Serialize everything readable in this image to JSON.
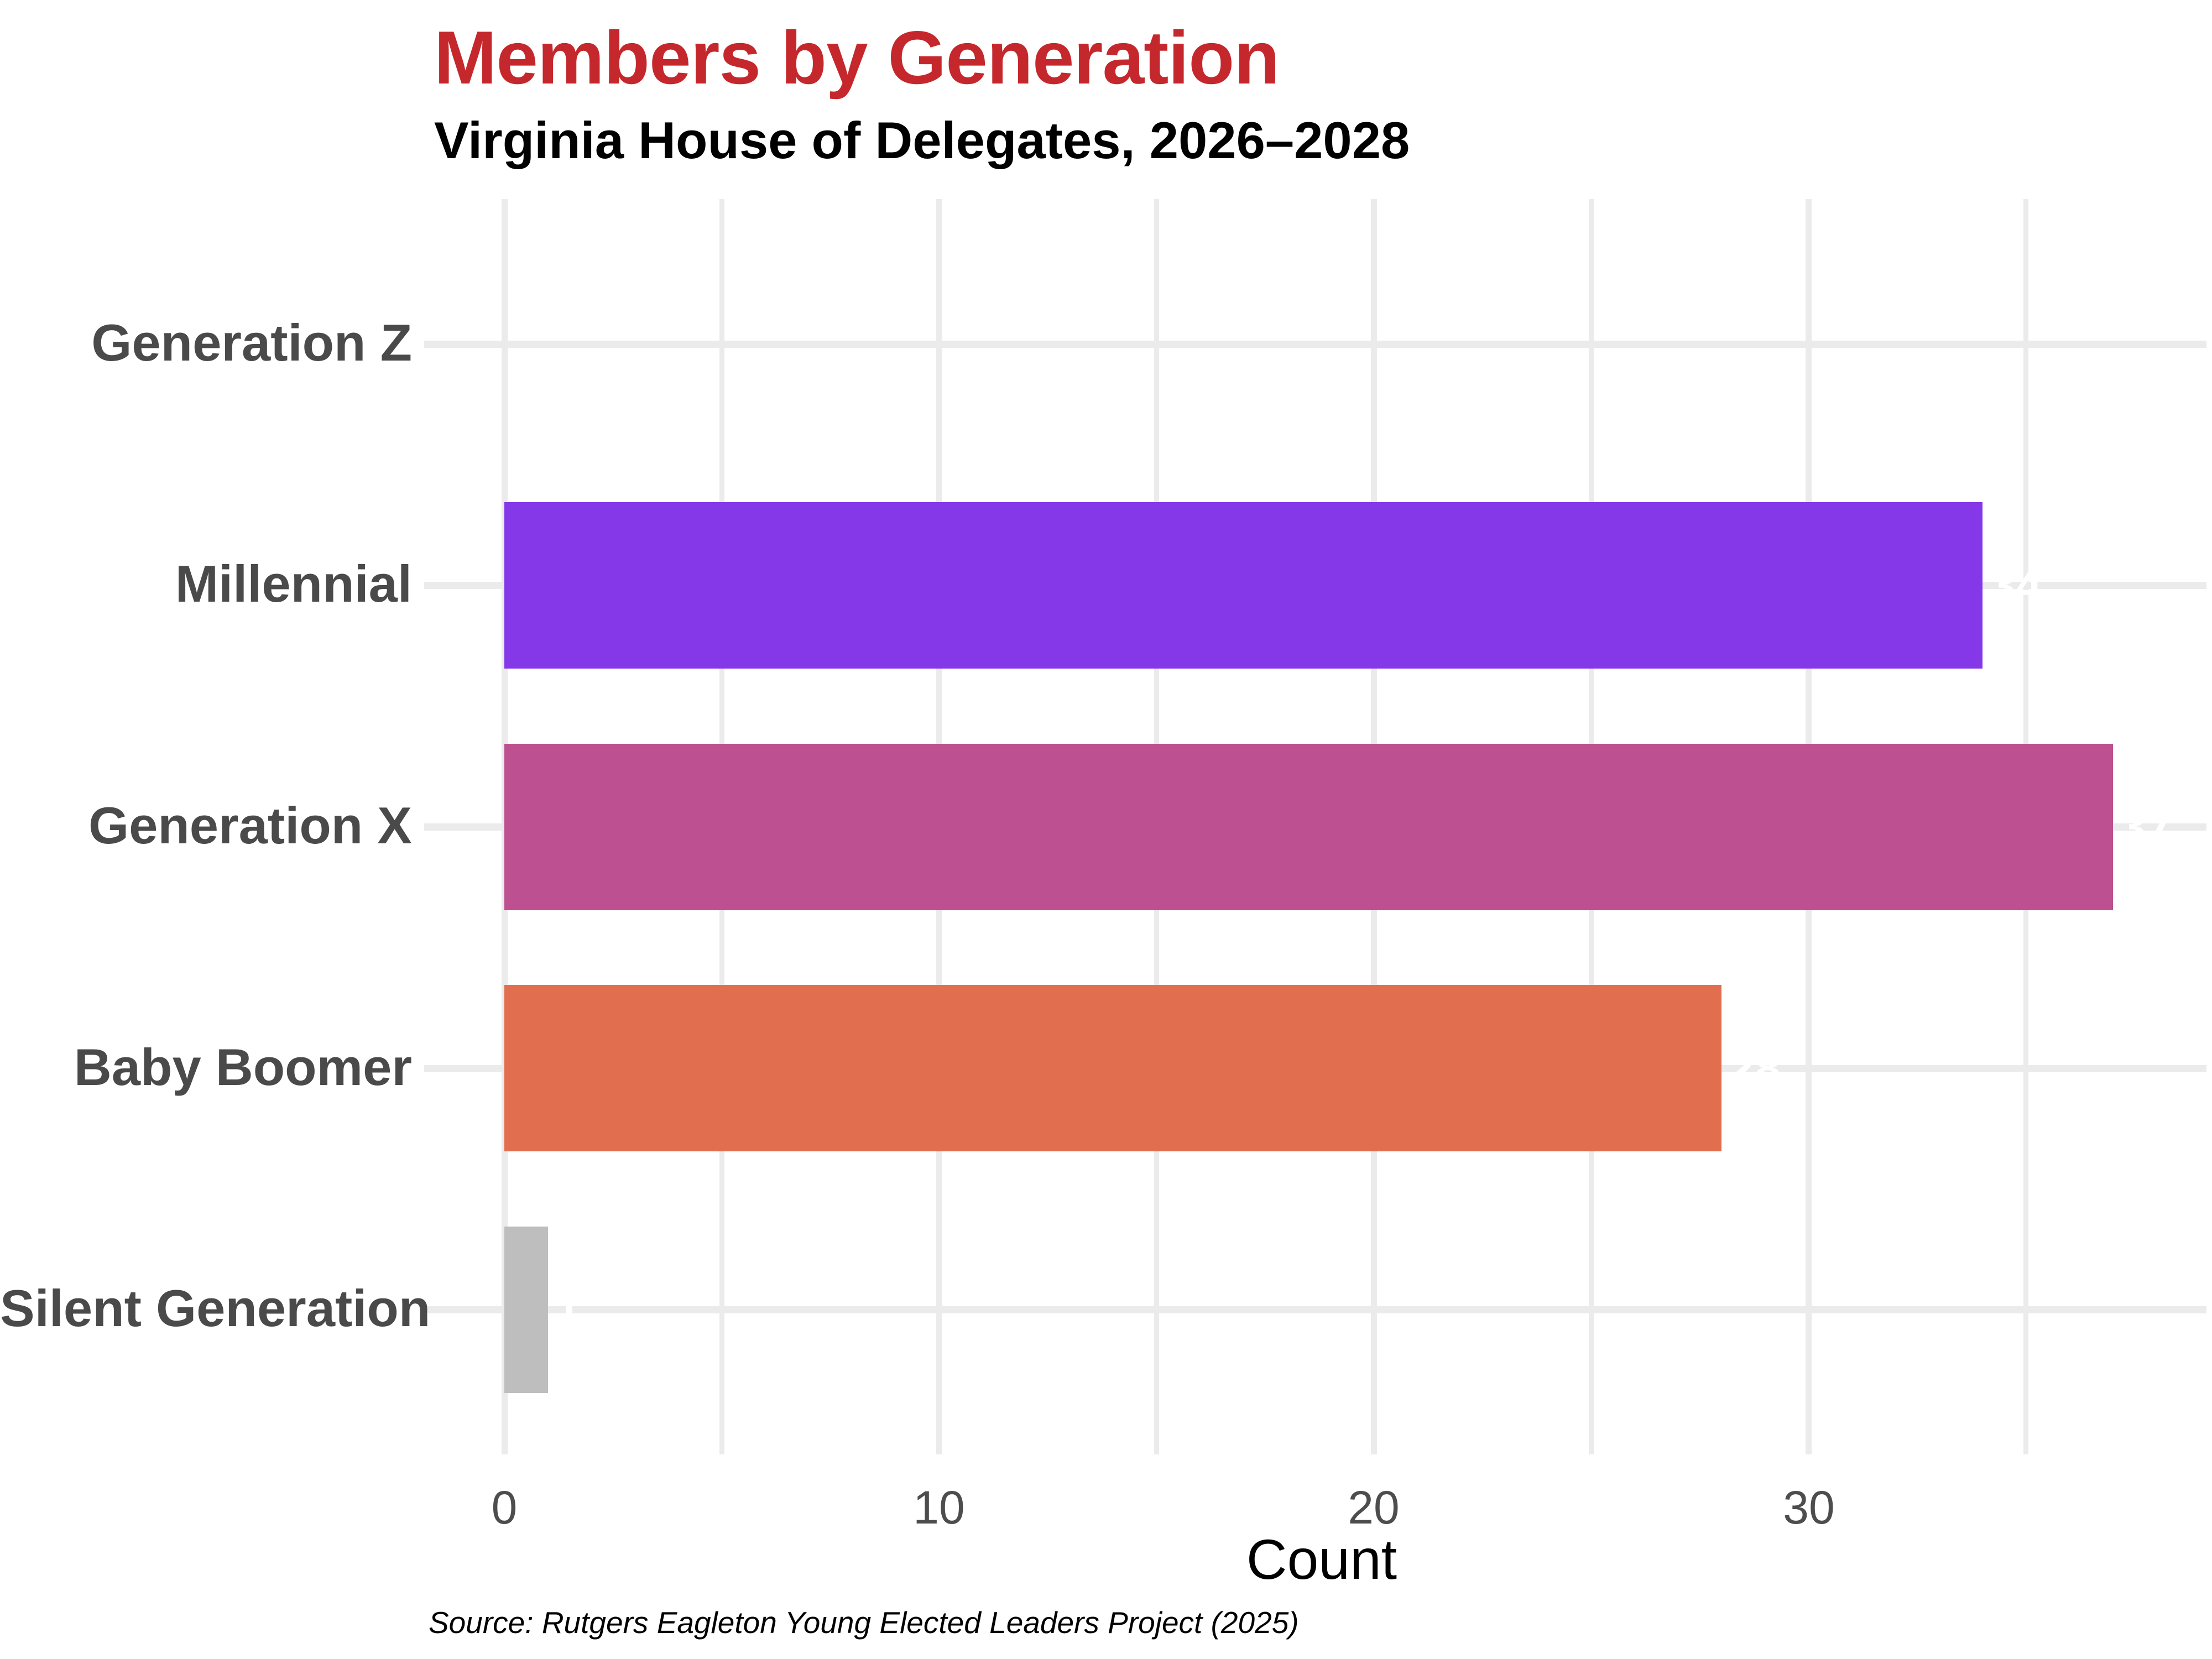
{
  "chart_data": {
    "type": "bar",
    "orientation": "horizontal",
    "title": "Members by Generation",
    "subtitle": "Virginia House of Delegates, 2026–2028",
    "xlabel": "Count",
    "ylabel": "",
    "categories": [
      "Generation Z",
      "Millennial",
      "Generation X",
      "Baby Boomer",
      "Silent Generation"
    ],
    "values": [
      0,
      34,
      37,
      28,
      1
    ],
    "bar_colors": [
      null,
      "#8438E8",
      "#BC5090",
      "#E26E50",
      "#BEBEBE"
    ],
    "value_labels": [
      "",
      "34",
      "37",
      "28",
      "1"
    ],
    "value_label_color": "#FFFFFF",
    "xlim": [
      0,
      39.15
    ],
    "x_major_ticks": [
      0,
      10,
      20,
      30
    ],
    "x_minor_ticks": [
      5,
      15,
      25,
      35
    ],
    "grid": true,
    "grid_color": "#EBEBEB",
    "legend": "none",
    "title_color": "#C5282C",
    "category_label_color": "#4A4A4A",
    "tick_label_color": "#4D4D4D",
    "source_note": "Source: Rutgers Eagleton Young Elected Leaders Project (2025)"
  }
}
